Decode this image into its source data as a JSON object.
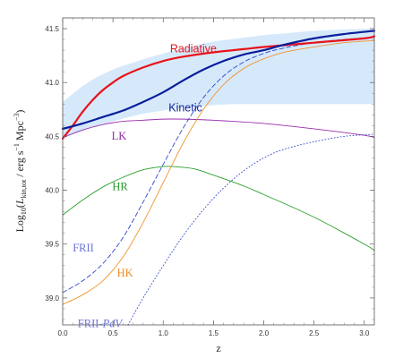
{
  "chart_data": {
    "type": "line",
    "title": "",
    "xlabel": "z",
    "ylabel_parts": {
      "prefix": "Log",
      "base": "10",
      "open": "(",
      "L": "L",
      "L_sub": "kin,tot",
      "mid": " / erg s",
      "exp1": "−1",
      "mpc": " Mpc",
      "exp2": "−3",
      "close": ")"
    },
    "xlim": [
      0.0,
      3.1
    ],
    "ylim": [
      38.75,
      41.6
    ],
    "xticks": [
      "0.0",
      "0.5",
      "1.0",
      "1.5",
      "2.0",
      "2.5",
      "3.0"
    ],
    "yticks": [
      "39.0",
      "39.5",
      "40.0",
      "40.5",
      "41.0",
      "41.5"
    ],
    "band": {
      "color": "#d6e9fb",
      "x": [
        0.0,
        0.25,
        0.5,
        0.75,
        1.0,
        1.25,
        1.5,
        1.75,
        2.0,
        2.25,
        2.5,
        2.75,
        3.0,
        3.1
      ],
      "upper": [
        40.82,
        41.0,
        41.12,
        41.2,
        41.27,
        41.33,
        41.38,
        41.41,
        41.44,
        41.46,
        41.48,
        41.49,
        41.5,
        41.5
      ],
      "lower": [
        40.48,
        40.57,
        40.64,
        40.7,
        40.74,
        40.77,
        40.79,
        40.8,
        40.8,
        40.8,
        40.8,
        40.8,
        40.8,
        40.8
      ]
    },
    "series": [
      {
        "key": "radiative",
        "name": "Radiative",
        "color": "#e8131b",
        "width": 2.2,
        "dash": "",
        "label_x": 1.3,
        "label_y": 41.28,
        "x": [
          0.0,
          0.1,
          0.2,
          0.3,
          0.4,
          0.5,
          0.6,
          0.8,
          1.0,
          1.2,
          1.5,
          1.8,
          2.0,
          2.5,
          3.0,
          3.1
        ],
        "y": [
          40.48,
          40.6,
          40.73,
          40.84,
          40.93,
          41.0,
          41.06,
          41.14,
          41.2,
          41.24,
          41.28,
          41.31,
          41.33,
          41.37,
          41.41,
          41.43
        ]
      },
      {
        "key": "kinetic",
        "name": "Kinetic",
        "color": "#0a1e9b",
        "width": 2.2,
        "dash": "",
        "label_x": 1.22,
        "label_y": 40.73,
        "x": [
          0.0,
          0.2,
          0.4,
          0.6,
          0.8,
          1.0,
          1.2,
          1.4,
          1.6,
          1.8,
          2.0,
          2.2,
          2.5,
          2.8,
          3.1
        ],
        "y": [
          40.57,
          40.62,
          40.68,
          40.74,
          40.82,
          40.91,
          41.02,
          41.12,
          41.2,
          41.26,
          41.3,
          41.35,
          41.41,
          41.45,
          41.48
        ]
      },
      {
        "key": "lk",
        "name": "LK",
        "color": "#9b2fae",
        "width": 0.9,
        "dash": "",
        "label_x": 0.56,
        "label_y": 40.47,
        "x": [
          0.0,
          0.2,
          0.4,
          0.6,
          0.8,
          1.0,
          1.2,
          1.5,
          2.0,
          2.5,
          3.0,
          3.1
        ],
        "y": [
          40.49,
          40.56,
          40.61,
          40.64,
          40.65,
          40.66,
          40.66,
          40.65,
          40.62,
          40.57,
          40.51,
          40.49
        ]
      },
      {
        "key": "hr",
        "name": "HR",
        "color": "#2ca02c",
        "width": 0.9,
        "dash": "",
        "label_x": 0.57,
        "label_y": 40.0,
        "x": [
          0.0,
          0.2,
          0.4,
          0.6,
          0.8,
          1.0,
          1.1,
          1.3,
          1.5,
          1.8,
          2.0,
          2.5,
          3.0,
          3.1
        ],
        "y": [
          39.77,
          39.91,
          40.03,
          40.12,
          40.19,
          40.22,
          40.22,
          40.2,
          40.14,
          40.04,
          39.96,
          39.75,
          39.5,
          39.44
        ]
      },
      {
        "key": "hk",
        "name": "HK",
        "color": "#f0952e",
        "width": 0.9,
        "dash": "",
        "label_x": 0.62,
        "label_y": 39.2,
        "x": [
          0.0,
          0.2,
          0.4,
          0.6,
          0.8,
          1.0,
          1.2,
          1.4,
          1.6,
          1.8,
          2.0,
          2.2,
          2.5,
          2.8,
          3.1
        ],
        "y": [
          38.94,
          39.03,
          39.16,
          39.38,
          39.7,
          40.07,
          40.44,
          40.75,
          40.98,
          41.13,
          41.22,
          41.28,
          41.33,
          41.37,
          41.39
        ]
      },
      {
        "key": "frii",
        "name": "FRII",
        "color": "#3347ca",
        "width": 0.9,
        "dash": "5,3",
        "label_x": 0.1,
        "label_y": 39.43,
        "x": [
          0.0,
          0.2,
          0.4,
          0.6,
          0.8,
          1.0,
          1.2,
          1.4,
          1.6,
          1.8,
          2.0,
          2.2,
          2.5,
          2.8,
          3.1
        ],
        "y": [
          39.05,
          39.16,
          39.32,
          39.56,
          39.89,
          40.24,
          40.58,
          40.86,
          41.06,
          41.19,
          41.27,
          41.32,
          41.37,
          41.4,
          41.42
        ]
      },
      {
        "key": "frii_pdv",
        "name": "FRII-PdV",
        "color": "#3347ca",
        "width": 0.9,
        "dash": "1,2.5",
        "label_x": 0.15,
        "label_y": 38.73,
        "x": [
          0.65,
          0.8,
          1.0,
          1.2,
          1.4,
          1.6,
          1.8,
          2.0,
          2.2,
          2.5,
          2.8,
          3.1
        ],
        "y": [
          38.75,
          39.0,
          39.3,
          39.58,
          39.82,
          40.02,
          40.18,
          40.3,
          40.38,
          40.45,
          40.5,
          40.52
        ]
      }
    ],
    "labels": {
      "radiative": "Radiative",
      "kinetic": "Kinetic",
      "lk": "LK",
      "hr": "HR",
      "hk": "HK",
      "frii": "FRII",
      "frii_pdv_a": "FRII-",
      "frii_pdv_b": "PdV"
    },
    "grid": false,
    "legend": "inline"
  }
}
